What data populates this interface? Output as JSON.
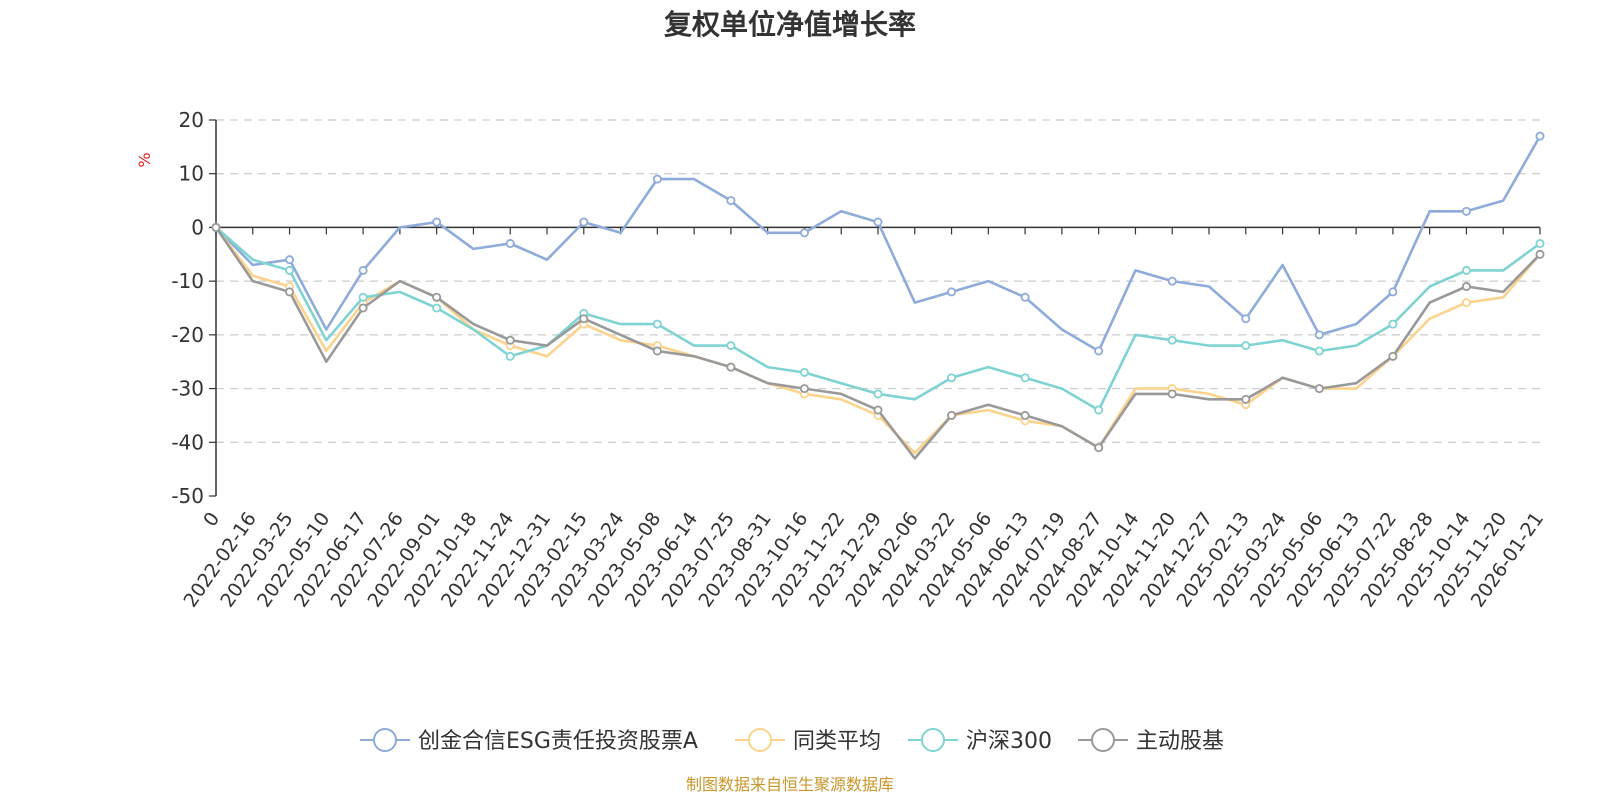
{
  "chart_data": {
    "type": "line",
    "title": "复权单位净值增长率",
    "ylabel": "%",
    "xlabel": "",
    "ylim": [
      -50,
      20
    ],
    "yticks": [
      20,
      10,
      0,
      -10,
      -20,
      -30,
      -40,
      -50
    ],
    "grid": true,
    "legend_position": "bottom",
    "source": "制图数据来自恒生聚源数据库",
    "x": [
      "0",
      "2022-02-16",
      "2022-03-25",
      "2022-05-10",
      "2022-06-17",
      "2022-07-26",
      "2022-09-01",
      "2022-10-18",
      "2022-11-24",
      "2022-12-31",
      "2023-02-15",
      "2023-03-24",
      "2023-05-08",
      "2023-06-14",
      "2023-07-25",
      "2023-08-31",
      "2023-10-16",
      "2023-11-22",
      "2023-12-29",
      "2024-02-06",
      "2024-03-22",
      "2024-05-06",
      "2024-06-13",
      "2024-07-19",
      "2024-08-27",
      "2024-10-14",
      "2024-11-20",
      "2024-12-27",
      "2025-02-13",
      "2025-03-24",
      "2025-05-06",
      "2025-06-13",
      "2025-07-22",
      "2025-08-28",
      "2025-10-14",
      "2025-11-20",
      "2026-01-21"
    ],
    "series": [
      {
        "name": "创金合信ESG责任投资股票A",
        "color": "#8eabd9",
        "values": [
          0,
          -7,
          -6,
          -19,
          -8,
          0,
          1,
          -4,
          -3,
          -6,
          1,
          -1,
          9,
          9,
          5,
          -1,
          -1,
          3,
          1,
          -14,
          -12,
          -10,
          -13,
          -19,
          -23,
          -8,
          -10,
          -11,
          -17,
          -7,
          -20,
          -18,
          -12,
          3,
          3,
          5,
          17
        ]
      },
      {
        "name": "同类平均",
        "color": "#fcd38d",
        "values": [
          0,
          -9,
          -11,
          -23,
          -14,
          -10,
          -13,
          -19,
          -22,
          -24,
          -18,
          -21,
          -22,
          -24,
          -26,
          -29,
          -31,
          -32,
          -35,
          -42,
          -35,
          -34,
          -36,
          -37,
          -41,
          -30,
          -30,
          -31,
          -33,
          -28,
          -30,
          -30,
          -24,
          -17,
          -14,
          -13,
          -5
        ]
      },
      {
        "name": "沪深300",
        "color": "#7fd3d3",
        "values": [
          0,
          -6,
          -8,
          -21,
          -13,
          -12,
          -15,
          -19,
          -24,
          -22,
          -16,
          -18,
          -18,
          -22,
          -22,
          -26,
          -27,
          -29,
          -31,
          -32,
          -28,
          -26,
          -28,
          -30,
          -34,
          -20,
          -21,
          -22,
          -22,
          -21,
          -23,
          -22,
          -18,
          -11,
          -8,
          -8,
          -3
        ]
      },
      {
        "name": "主动股基",
        "color": "#999999",
        "values": [
          0,
          -10,
          -12,
          -25,
          -15,
          -10,
          -13,
          -18,
          -21,
          -22,
          -17,
          -20,
          -23,
          -24,
          -26,
          -29,
          -30,
          -31,
          -34,
          -43,
          -35,
          -33,
          -35,
          -37,
          -41,
          -31,
          -31,
          -32,
          -32,
          -28,
          -30,
          -29,
          -24,
          -14,
          -11,
          -12,
          -5
        ]
      }
    ]
  }
}
